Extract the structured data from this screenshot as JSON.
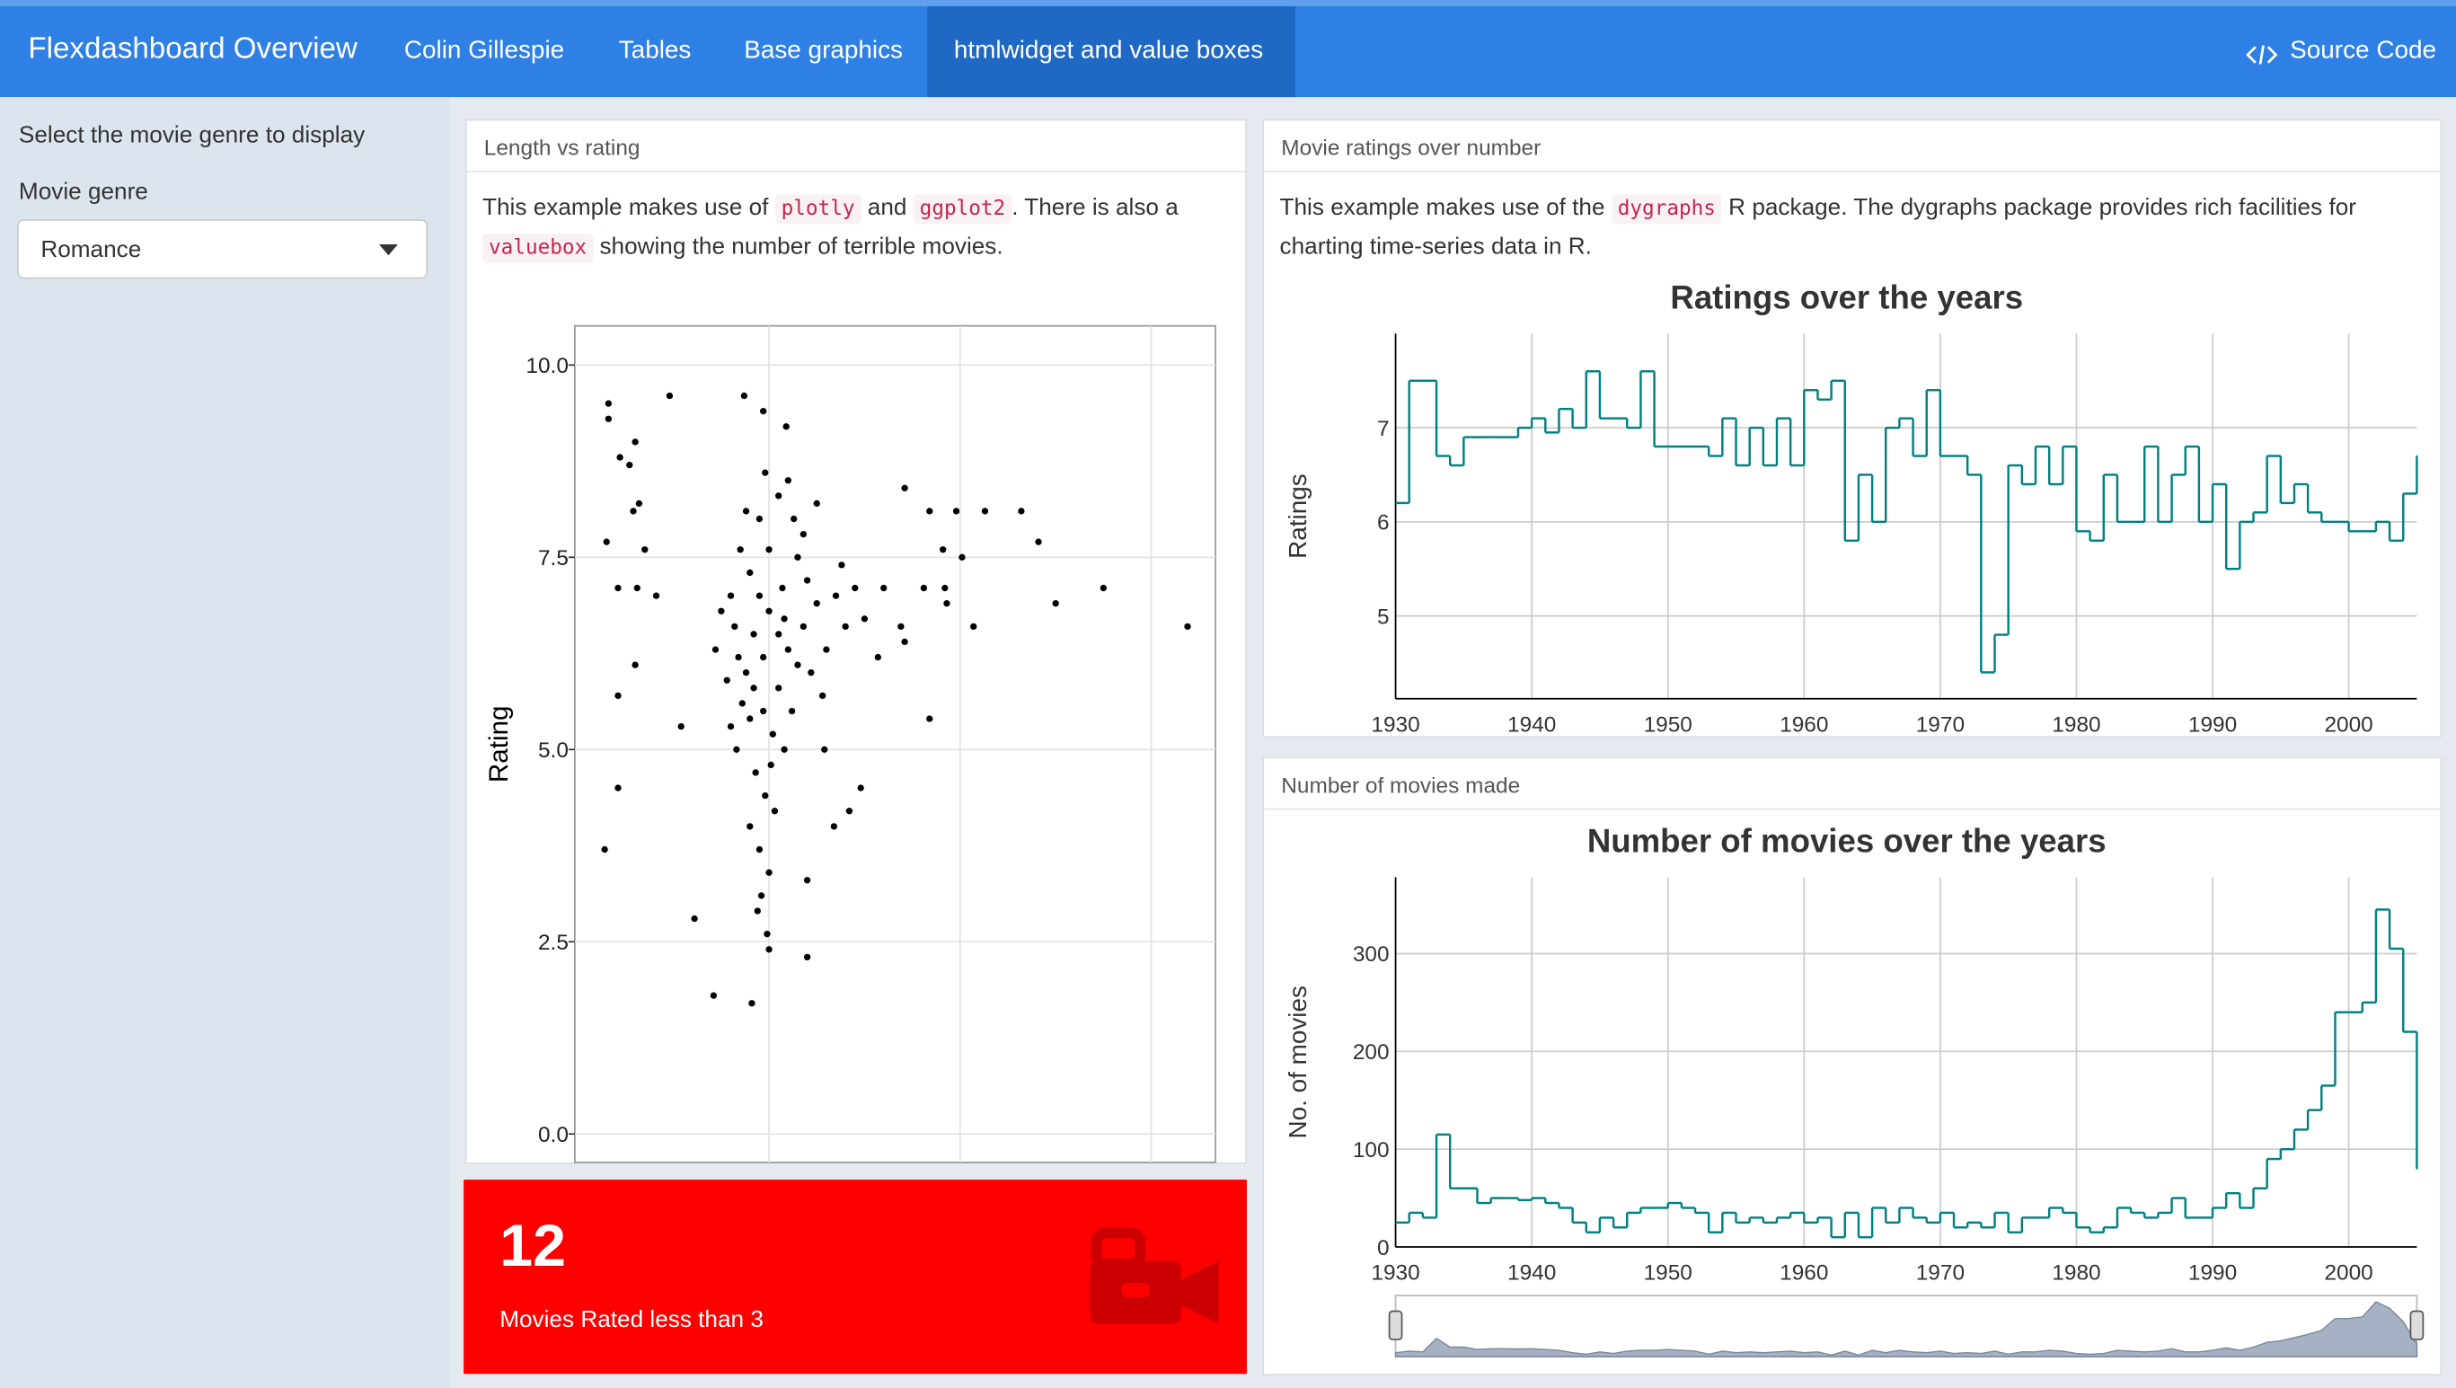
{
  "navbar": {
    "title": "Flexdashboard Overview",
    "author": "Colin Gillespie",
    "tabs": [
      "Tables",
      "Base graphics",
      "htmlwidget and value boxes"
    ],
    "source": "Source Code"
  },
  "sidebar": {
    "prompt": "Select the movie genre to display",
    "label": "Movie genre",
    "selected": "Romance"
  },
  "panels": [
    {
      "title": "Length vs rating",
      "text": [
        {
          "text": "This example makes use of "
        },
        {
          "text": "plotly",
          "code": true
        },
        {
          "text": " and "
        },
        {
          "text": "ggplot2",
          "code": true
        },
        {
          "text": ". There is also a "
        },
        {
          "text": "valuebox",
          "code": true
        },
        {
          "text": " showing the number of terrible movies."
        }
      ]
    },
    {
      "title": "Movie ratings over number",
      "text": [
        {
          "text": "This example makes use of the "
        },
        {
          "text": "dygraphs",
          "code": true
        },
        {
          "text": " R package. The dygraphs package provides rich facilities for charting time-series data in R."
        }
      ]
    },
    {
      "title": "Number of movies made"
    }
  ],
  "value_box": {
    "value": 12,
    "caption": "Movies Rated less than 3",
    "color": "#ff0000"
  },
  "chart_data": [
    {
      "type": "scatter",
      "ylabel": "Rating",
      "color": "#000000",
      "x": [
        16,
        16,
        48,
        87,
        97,
        109,
        30,
        22,
        27,
        32,
        29,
        15,
        35,
        21,
        31,
        41,
        30,
        21,
        21,
        14,
        61,
        71,
        91,
        100,
        120,
        120,
        54,
        184,
        171,
        184,
        198,
        213,
        232,
        241,
        201,
        191,
        192,
        181,
        193,
        207,
        250,
        275,
        319,
        169,
        171,
        160,
        157,
        148,
        142,
        134,
        129,
        85,
        90,
        95,
        100,
        105,
        110,
        88,
        92,
        97,
        102,
        108,
        93,
        98,
        103,
        90,
        95,
        100,
        80,
        82,
        84,
        78,
        86,
        80,
        75,
        72,
        115,
        120,
        125,
        118,
        130,
        122,
        128,
        112,
        135,
        140,
        138,
        145,
        150,
        113,
        105,
        98,
        110,
        125,
        118,
        95,
        88,
        100,
        107,
        83,
        90,
        105,
        115,
        97,
        92,
        108,
        101,
        96,
        94,
        99
      ],
      "y": [
        9.5,
        9.3,
        9.6,
        9.6,
        9.4,
        9.2,
        9.0,
        8.8,
        8.7,
        8.2,
        8.1,
        7.7,
        7.6,
        7.1,
        7.1,
        7.0,
        6.1,
        5.7,
        4.5,
        3.7,
        2.8,
        1.8,
        1.7,
        2.4,
        2.3,
        3.3,
        5.3,
        5.4,
        8.4,
        8.1,
        8.1,
        8.1,
        8.1,
        7.7,
        7.5,
        7.6,
        7.1,
        7.1,
        6.9,
        6.6,
        6.9,
        7.1,
        6.6,
        6.6,
        6.4,
        7.1,
        6.2,
        4.5,
        4.2,
        4.0,
        5.0,
        7.6,
        7.3,
        7.0,
        6.8,
        6.5,
        6.3,
        6.0,
        5.8,
        5.5,
        5.2,
        5.0,
        4.7,
        4.4,
        4.2,
        4.0,
        3.7,
        3.4,
        7.0,
        6.6,
        6.2,
        5.9,
        5.6,
        5.3,
        6.8,
        6.3,
        7.5,
        7.2,
        6.9,
        6.6,
        6.3,
        6.0,
        5.7,
        5.5,
        7.0,
        6.6,
        7.4,
        7.1,
        6.7,
        8.0,
        8.3,
        8.6,
        8.5,
        8.2,
        7.8,
        8.0,
        8.1,
        7.6,
        7.1,
        5.0,
        5.4,
        5.8,
        6.1,
        6.2,
        6.5,
        6.7,
        4.8,
        3.1,
        2.9,
        2.6
      ],
      "xlim": [
        -1.6,
        333.6
      ],
      "xticks": [
        100,
        200,
        300
      ],
      "ylim": [
        -0.37,
        10.51
      ],
      "yticks": [
        {
          "value": 0,
          "label": "0.0"
        },
        {
          "value": 2.5,
          "label": "2.5"
        },
        {
          "value": 5,
          "label": "5.0"
        },
        {
          "value": 7.5,
          "label": "7.5"
        },
        {
          "value": 10,
          "label": "10.0"
        }
      ],
      "grid": true
    },
    {
      "type": "step",
      "title": "Ratings over the years",
      "ylabel": "Ratings",
      "color": "#008080",
      "x": [
        1930,
        1931,
        1932,
        1933,
        1934,
        1935,
        1936,
        1937,
        1938,
        1939,
        1940,
        1941,
        1942,
        1943,
        1944,
        1945,
        1946,
        1947,
        1948,
        1949,
        1950,
        1951,
        1952,
        1953,
        1954,
        1955,
        1956,
        1957,
        1958,
        1959,
        1960,
        1961,
        1962,
        1963,
        1964,
        1965,
        1966,
        1967,
        1968,
        1969,
        1970,
        1971,
        1972,
        1973,
        1974,
        1975,
        1976,
        1977,
        1978,
        1979,
        1980,
        1981,
        1982,
        1983,
        1984,
        1985,
        1986,
        1987,
        1988,
        1989,
        1990,
        1991,
        1992,
        1993,
        1994,
        1995,
        1996,
        1997,
        1998,
        1999,
        2000,
        2001,
        2002,
        2003,
        2004,
        2005
      ],
      "values": [
        6.2,
        7.5,
        7.5,
        6.7,
        6.6,
        6.9,
        6.9,
        6.9,
        6.9,
        7.0,
        7.1,
        6.95,
        7.2,
        7.0,
        7.6,
        7.1,
        7.1,
        7.0,
        7.6,
        6.8,
        6.8,
        6.8,
        6.8,
        6.7,
        7.1,
        6.6,
        7.0,
        6.6,
        7.1,
        6.6,
        7.4,
        7.3,
        7.5,
        5.8,
        6.5,
        6.0,
        7.0,
        7.1,
        6.7,
        7.4,
        6.7,
        6.7,
        6.5,
        4.4,
        4.8,
        6.6,
        6.4,
        6.8,
        6.4,
        6.8,
        5.9,
        5.8,
        6.5,
        6.0,
        6.0,
        6.8,
        6.0,
        6.5,
        6.8,
        6.0,
        6.4,
        5.5,
        6.0,
        6.1,
        6.7,
        6.2,
        6.4,
        6.1,
        6.0,
        6.0,
        5.9,
        5.9,
        6.0,
        5.8,
        6.3,
        6.7
      ],
      "xlim": [
        1930,
        2005
      ],
      "xticks": [
        1930,
        1940,
        1950,
        1960,
        1970,
        1980,
        1990,
        2000
      ],
      "ylim": [
        4.12,
        8.0
      ],
      "yticks": [
        5,
        6,
        7
      ],
      "grid": true
    },
    {
      "type": "step",
      "title": "Number of movies over the years",
      "ylabel": "No. of movies",
      "color": "#008080",
      "range_selector": true,
      "x": [
        1930,
        1931,
        1932,
        1933,
        1934,
        1935,
        1936,
        1937,
        1938,
        1939,
        1940,
        1941,
        1942,
        1943,
        1944,
        1945,
        1946,
        1947,
        1948,
        1949,
        1950,
        1951,
        1952,
        1953,
        1954,
        1955,
        1956,
        1957,
        1958,
        1959,
        1960,
        1961,
        1962,
        1963,
        1964,
        1965,
        1966,
        1967,
        1968,
        1969,
        1970,
        1971,
        1972,
        1973,
        1974,
        1975,
        1976,
        1977,
        1978,
        1979,
        1980,
        1981,
        1982,
        1983,
        1984,
        1985,
        1986,
        1987,
        1988,
        1989,
        1990,
        1991,
        1992,
        1993,
        1994,
        1995,
        1996,
        1997,
        1998,
        1999,
        2000,
        2001,
        2002,
        2003,
        2004,
        2005
      ],
      "values": [
        25,
        35,
        30,
        115,
        60,
        60,
        45,
        50,
        50,
        48,
        50,
        45,
        40,
        25,
        15,
        30,
        20,
        35,
        40,
        40,
        45,
        40,
        35,
        15,
        35,
        25,
        30,
        25,
        30,
        35,
        25,
        30,
        10,
        35,
        10,
        40,
        25,
        40,
        30,
        25,
        35,
        20,
        25,
        20,
        35,
        15,
        30,
        30,
        40,
        35,
        20,
        15,
        20,
        40,
        35,
        30,
        35,
        50,
        30,
        30,
        40,
        55,
        40,
        60,
        90,
        100,
        120,
        140,
        165,
        240,
        240,
        250,
        345,
        305,
        220,
        80
      ],
      "xlim": [
        1930,
        2005
      ],
      "xticks": [
        1930,
        1940,
        1950,
        1960,
        1970,
        1980,
        1990,
        2000
      ],
      "ylim": [
        0,
        378
      ],
      "yticks": [
        0,
        100,
        200,
        300
      ],
      "grid": true
    }
  ]
}
